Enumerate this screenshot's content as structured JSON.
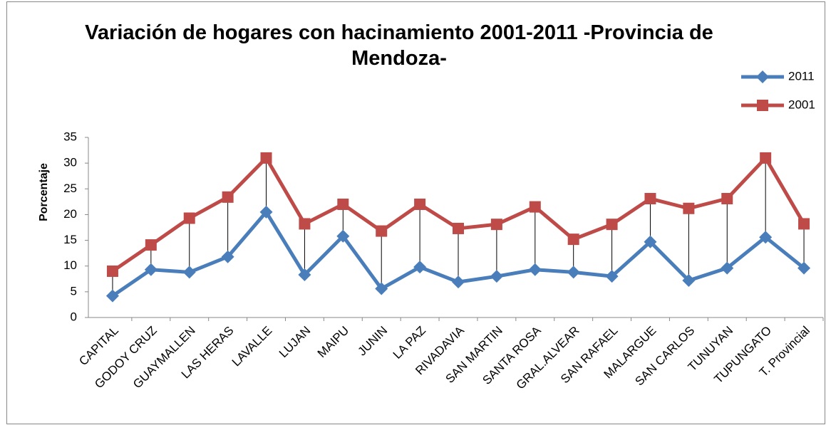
{
  "chart_data": {
    "type": "line",
    "title": "Variación de hogares con hacinamiento 2001-2011 -Provincia de Mendoza-",
    "y_label": "Porcentaje",
    "categories": [
      "CAPITAL",
      "GODOY CRUZ",
      "GUAYMALLEN",
      "LAS HERAS",
      "LAVALLE",
      "LUJAN",
      "MAIPU",
      "JUNIN",
      "LA PAZ",
      "RIVADAVIA",
      "SAN MARTIN",
      "SANTA ROSA",
      "GRAL.ALVEAR",
      "SAN RAFAEL",
      "MALARGUE",
      "SAN CARLOS",
      "TUNUYAN",
      "TUPUNGATO",
      "T. Provincial"
    ],
    "series": [
      {
        "name": "2011",
        "color": "#4a7ebb",
        "marker": "diamond",
        "values": [
          4.2,
          9.3,
          8.8,
          11.8,
          20.5,
          8.3,
          15.8,
          5.6,
          9.8,
          6.9,
          8.0,
          9.3,
          8.8,
          8.0,
          14.7,
          7.2,
          9.6,
          15.6,
          9.6
        ]
      },
      {
        "name": "2001",
        "color": "#be4b48",
        "marker": "square",
        "values": [
          9.0,
          14.1,
          19.3,
          23.4,
          31.0,
          18.2,
          22.0,
          16.8,
          22.0,
          17.3,
          18.1,
          21.5,
          15.2,
          18.1,
          23.1,
          21.2,
          23.1,
          31.0,
          18.2
        ]
      }
    ],
    "ylim": [
      0,
      35
    ],
    "yticks": [
      0,
      5,
      10,
      15,
      20,
      25,
      30,
      35
    ],
    "grid": false,
    "drop_lines": true,
    "legend": "top-right"
  }
}
